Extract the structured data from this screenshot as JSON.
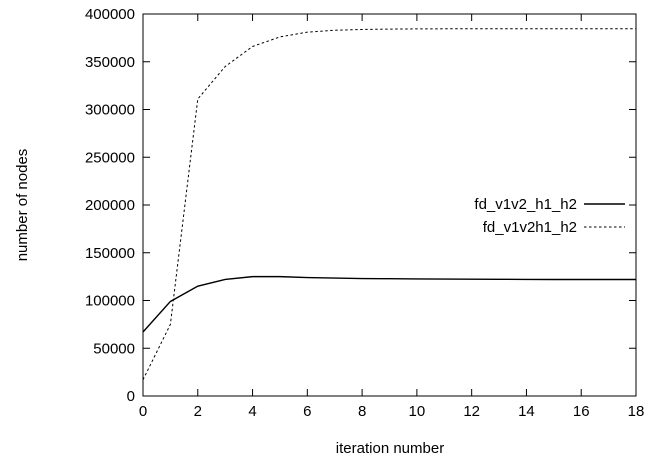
{
  "chart_data": {
    "type": "line",
    "title": "",
    "xlabel": "iteration number",
    "ylabel": "number of nodes",
    "xlim": [
      0,
      18
    ],
    "ylim": [
      0,
      400000
    ],
    "xticks": [
      0,
      2,
      4,
      6,
      8,
      10,
      12,
      14,
      16,
      18
    ],
    "yticks": [
      0,
      50000,
      100000,
      150000,
      200000,
      250000,
      300000,
      350000,
      400000
    ],
    "grid": false,
    "legend_position": "right",
    "series": [
      {
        "name": "fd_v1v2_h1_h2",
        "style": "solid",
        "color": "#000000",
        "x": [
          0,
          1,
          2,
          3,
          4,
          5,
          6,
          7,
          8,
          9,
          10,
          11,
          12,
          13,
          14,
          15,
          16,
          17,
          18
        ],
        "y": [
          67000,
          99000,
          115000,
          122000,
          125000,
          125000,
          124000,
          123500,
          123000,
          122800,
          122600,
          122400,
          122300,
          122200,
          122100,
          122000,
          122000,
          122000,
          122000
        ]
      },
      {
        "name": "fd_v1v2h1_h2",
        "style": "dotted",
        "color": "#000000",
        "x": [
          0,
          1,
          2,
          3,
          4,
          5,
          6,
          7,
          8,
          9,
          10,
          11,
          12,
          13,
          14,
          15,
          16,
          17,
          18
        ],
        "y": [
          17000,
          75000,
          311000,
          345000,
          366000,
          376000,
          381000,
          383000,
          383800,
          384200,
          384400,
          384500,
          384500,
          384500,
          384500,
          384500,
          384500,
          384500,
          384500
        ]
      }
    ]
  }
}
